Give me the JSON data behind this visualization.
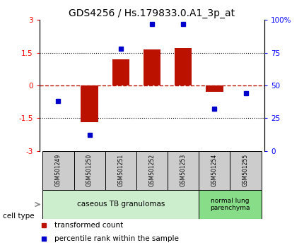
{
  "title": "GDS4256 / Hs.179833.0.A1_3p_at",
  "samples": [
    "GSM501249",
    "GSM501250",
    "GSM501251",
    "GSM501252",
    "GSM501253",
    "GSM501254",
    "GSM501255"
  ],
  "red_values": [
    0.0,
    -1.7,
    1.2,
    1.65,
    1.7,
    -0.3,
    0.0
  ],
  "blue_values": [
    38,
    12,
    78,
    97,
    97,
    32,
    44
  ],
  "ylim_left": [
    -3,
    3
  ],
  "ylim_right": [
    0,
    100
  ],
  "yticks_left": [
    -3,
    -1.5,
    0,
    1.5,
    3
  ],
  "ytick_labels_left": [
    "-3",
    "-1.5",
    "0",
    "1.5",
    "3"
  ],
  "yticks_right": [
    0,
    25,
    50,
    75,
    100
  ],
  "ytick_labels_right": [
    "0",
    "25",
    "50",
    "75",
    "100%"
  ],
  "bar_color": "#bb1100",
  "dot_color": "#0000cc",
  "bar_width": 0.55,
  "group0_color": "#cceecc",
  "group1_color": "#88dd88",
  "group0_label": "caseous TB granulomas",
  "group1_label": "normal lung\nparenchyma",
  "group0_samples": 5,
  "group1_samples": 2,
  "cell_type_label": "cell type",
  "legend_red_label": "transformed count",
  "legend_blue_label": "percentile rank within the sample",
  "sample_box_color": "#cccccc",
  "background_color": "#ffffff",
  "tick_label_fontsize": 7.5,
  "title_fontsize": 10,
  "label_fontsize": 7.5
}
